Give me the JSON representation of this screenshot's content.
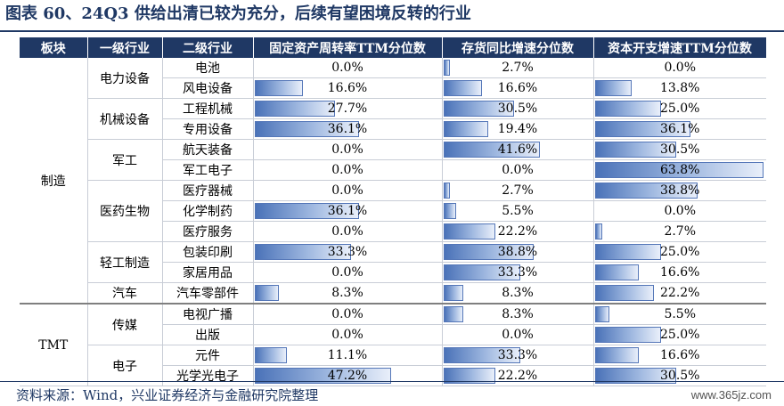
{
  "title": "图表 60、24Q3 供给出清已较为充分，后续有望困境反转的行业",
  "headers": [
    "板块",
    "一级行业",
    "二级行业",
    "固定资产周转率TTM分位数",
    "存货同比增速分位数",
    "资本开支增速TTM分位数"
  ],
  "sectors": [
    {
      "name": "制造",
      "rowspan": 12
    },
    {
      "name": "TMT",
      "rowspan": 4
    }
  ],
  "industries": [
    {
      "name": "电力设备",
      "rowspan": 2
    },
    {
      "name": "机械设备",
      "rowspan": 2
    },
    {
      "name": "军工",
      "rowspan": 2
    },
    {
      "name": "医药生物",
      "rowspan": 3
    },
    {
      "name": "轻工制造",
      "rowspan": 2
    },
    {
      "name": "汽车",
      "rowspan": 1
    },
    {
      "name": "传媒",
      "rowspan": 2
    },
    {
      "name": "电子",
      "rowspan": 2
    }
  ],
  "rows": [
    {
      "sub": "电池",
      "v": [
        "0.0%",
        "2.7%",
        "0.0%"
      ],
      "p": [
        0.0,
        2.7,
        0.0
      ]
    },
    {
      "sub": "风电设备",
      "v": [
        "16.6%",
        "16.6%",
        "13.8%"
      ],
      "p": [
        16.6,
        16.6,
        13.8
      ]
    },
    {
      "sub": "工程机械",
      "v": [
        "27.7%",
        "30.5%",
        "25.0%"
      ],
      "p": [
        27.7,
        30.5,
        25.0
      ]
    },
    {
      "sub": "专用设备",
      "v": [
        "36.1%",
        "19.4%",
        "36.1%"
      ],
      "p": [
        36.1,
        19.4,
        36.1
      ]
    },
    {
      "sub": "航天装备",
      "v": [
        "0.0%",
        "41.6%",
        "30.5%"
      ],
      "p": [
        0.0,
        41.6,
        30.5
      ]
    },
    {
      "sub": "军工电子",
      "v": [
        "0.0%",
        "0.0%",
        "63.8%"
      ],
      "p": [
        0.0,
        0.0,
        63.8
      ]
    },
    {
      "sub": "医疗器械",
      "v": [
        "0.0%",
        "2.7%",
        "38.8%"
      ],
      "p": [
        0.0,
        2.7,
        38.8
      ]
    },
    {
      "sub": "化学制药",
      "v": [
        "36.1%",
        "5.5%",
        "0.0%"
      ],
      "p": [
        36.1,
        5.5,
        0.0
      ]
    },
    {
      "sub": "医疗服务",
      "v": [
        "0.0%",
        "22.2%",
        "2.7%"
      ],
      "p": [
        0.0,
        22.2,
        2.7
      ]
    },
    {
      "sub": "包装印刷",
      "v": [
        "33.3%",
        "38.8%",
        "25.0%"
      ],
      "p": [
        33.3,
        38.8,
        25.0
      ]
    },
    {
      "sub": "家居用品",
      "v": [
        "0.0%",
        "33.3%",
        "16.6%"
      ],
      "p": [
        0.0,
        33.3,
        16.6
      ]
    },
    {
      "sub": "汽车零部件",
      "v": [
        "8.3%",
        "8.3%",
        "22.2%"
      ],
      "p": [
        8.3,
        8.3,
        22.2
      ]
    },
    {
      "sub": "电视广播",
      "v": [
        "0.0%",
        "8.3%",
        "5.5%"
      ],
      "p": [
        0.0,
        8.3,
        5.5
      ]
    },
    {
      "sub": "出版",
      "v": [
        "0.0%",
        "0.0%",
        "25.0%"
      ],
      "p": [
        0.0,
        0.0,
        25.0
      ]
    },
    {
      "sub": "元件",
      "v": [
        "11.1%",
        "33.3%",
        "16.6%"
      ],
      "p": [
        11.1,
        33.3,
        16.6
      ]
    },
    {
      "sub": "光学光电子",
      "v": [
        "47.2%",
        "22.2%",
        "30.5%"
      ],
      "p": [
        47.2,
        22.2,
        30.5
      ]
    }
  ],
  "source": "资料来源：Wind，兴业证券经济与金融研究院整理",
  "watermark": "www.365jz.com"
}
